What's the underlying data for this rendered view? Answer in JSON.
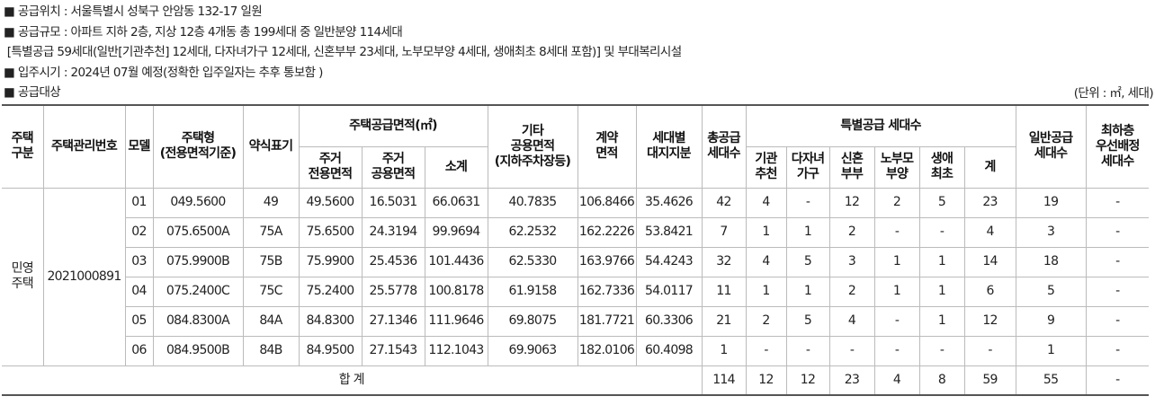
{
  "info": [
    "■ 공급위치 : 서울특별시 성북구 안암동 132-17 일원",
    "■ 공급규모 : 아파트 지하 2층, 지상 12층 4개동 총 199세대 중 일반분양 114세대",
    " [특별공급 59세대(일반[기관추천] 12세대, 다자녀가구 12세대, 신혼부부 23세대, 노부모부양 4세대, 생애최초 8세대 포함)] 및 부대복리시설",
    "■ 입주시기 : 2024년 07월 예정(정확한 입주일자는 추후 통보함 )",
    "■ 공급대상"
  ],
  "unit": "(단위 : ㎡, 세대)",
  "table": {
    "header": [
      "주택\n구분",
      "주택관리번호",
      "모델",
      "주택형\n(전용면적기준)",
      "약식표기",
      {
        "group": "주택공급면적(㎡)",
        "columns": [
          "주거\n전용면적",
          "주거\n공용면적",
          "소계"
        ]
      },
      "기타\n공용면적\n(지하주차장등)",
      "계약\n면적",
      "세대별\n대지지분",
      "총공급\n세대수",
      {
        "group": "특별공급 세대수",
        "columns": [
          "기관\n추천",
          "다자녀\n가구",
          "신혼\n부부",
          "노부모\n부양",
          "생애\n최초",
          "계"
        ]
      },
      "일반공급\n세대수",
      "최하층\n우선배정\n세대수"
    ],
    "category": "민영\n주택",
    "management_no": "2021000891",
    "rows": [
      [
        "01",
        "049.5600",
        "49",
        "49.5600",
        "16.5031",
        "66.0631",
        "40.7835",
        "106.8466",
        "35.4626",
        "42",
        "4",
        "-",
        "12",
        "2",
        "5",
        "23",
        "19",
        "-"
      ],
      [
        "02",
        "075.6500A",
        "75A",
        "75.6500",
        "24.3194",
        "99.9694",
        "62.2532",
        "162.2226",
        "53.8421",
        "7",
        "1",
        "1",
        "2",
        "-",
        "-",
        "4",
        "3",
        "-"
      ],
      [
        "03",
        "075.9900B",
        "75B",
        "75.9900",
        "25.4536",
        "101.4436",
        "62.5330",
        "163.9766",
        "54.4243",
        "32",
        "4",
        "5",
        "3",
        "1",
        "1",
        "14",
        "18",
        "-"
      ],
      [
        "04",
        "075.2400C",
        "75C",
        "75.2400",
        "25.5778",
        "100.8178",
        "61.9158",
        "162.7336",
        "54.0117",
        "11",
        "1",
        "1",
        "2",
        "1",
        "1",
        "6",
        "5",
        "-"
      ],
      [
        "05",
        "084.8300A",
        "84A",
        "84.8300",
        "27.1346",
        "111.9646",
        "69.8075",
        "181.7721",
        "60.3306",
        "21",
        "2",
        "5",
        "4",
        "-",
        "1",
        "12",
        "9",
        "-"
      ],
      [
        "06",
        "084.9500B",
        "84B",
        "84.9500",
        "27.1543",
        "112.1043",
        "69.9063",
        "182.0106",
        "60.4098",
        "1",
        "-",
        "-",
        "-",
        "-",
        "-",
        "-",
        "1",
        "-"
      ]
    ],
    "total": {
      "label": "합 계",
      "values": [
        "114",
        "12",
        "12",
        "23",
        "4",
        "8",
        "59",
        "55",
        "-"
      ]
    }
  }
}
